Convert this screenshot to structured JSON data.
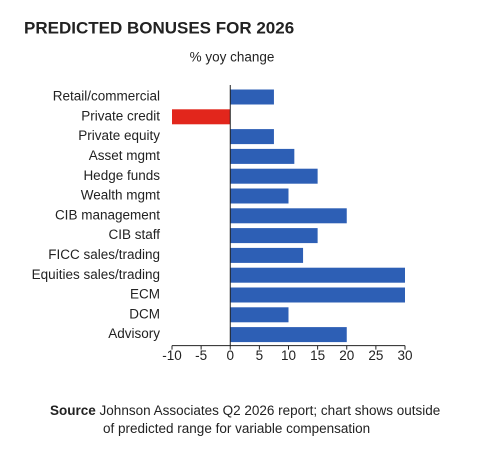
{
  "chart_data": {
    "type": "bar",
    "orientation": "horizontal",
    "title": "PREDICTED BONUSES FOR 2026",
    "subtitle": "% yoy change",
    "categories": [
      "Retail/commercial",
      "Private credit",
      "Private equity",
      "Asset mgmt",
      "Hedge funds",
      "Wealth mgmt",
      "CIB management",
      "CIB staff",
      "FICC sales/trading",
      "Equities sales/trading",
      "ECM",
      "DCM",
      "Advisory"
    ],
    "values": [
      7.5,
      -10,
      7.5,
      11,
      15,
      10,
      20,
      15,
      12.5,
      30,
      30,
      10,
      20
    ],
    "color": "#2d5fb5",
    "negative_color": "#e2261c",
    "xlim": [
      -10,
      30
    ],
    "xticks": [
      -10,
      -5,
      0,
      5,
      10,
      15,
      20,
      25,
      30
    ],
    "grid": false,
    "source_label": "Source",
    "source_text": "Johnson Associates Q2 2026 report; chart shows outside of predicted range for variable compensation"
  }
}
